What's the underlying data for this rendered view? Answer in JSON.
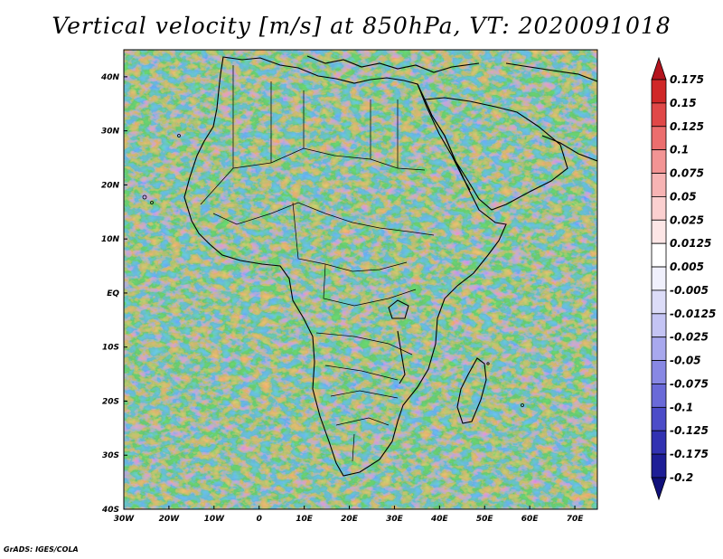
{
  "title": "Vertical velocity [m/s] at 850hPa, VT: 2020091018",
  "footer": "GrADS: IGES/COLA",
  "map": {
    "lon_range": [
      -30,
      75
    ],
    "lat_range": [
      -40,
      45
    ],
    "lon_ticks": [
      {
        "value": -30,
        "label": "30W"
      },
      {
        "value": -20,
        "label": "20W"
      },
      {
        "value": -10,
        "label": "10W"
      },
      {
        "value": 0,
        "label": "0"
      },
      {
        "value": 10,
        "label": "10E"
      },
      {
        "value": 20,
        "label": "20E"
      },
      {
        "value": 30,
        "label": "30E"
      },
      {
        "value": 40,
        "label": "40E"
      },
      {
        "value": 50,
        "label": "50E"
      },
      {
        "value": 60,
        "label": "60E"
      },
      {
        "value": 70,
        "label": "70E"
      }
    ],
    "lat_ticks": [
      {
        "value": 40,
        "label": "40N"
      },
      {
        "value": 30,
        "label": "30N"
      },
      {
        "value": 20,
        "label": "20N"
      },
      {
        "value": 10,
        "label": "10N"
      },
      {
        "value": 0,
        "label": "EQ"
      },
      {
        "value": -10,
        "label": "10S"
      },
      {
        "value": -20,
        "label": "20S"
      },
      {
        "value": -30,
        "label": "30S"
      },
      {
        "value": -40,
        "label": "40S"
      }
    ]
  },
  "colorbar": {
    "labels": [
      "0.175",
      "0.15",
      "0.125",
      "0.1",
      "0.075",
      "0.05",
      "0.025",
      "0.0125",
      "0.005",
      "-0.005",
      "-0.0125",
      "-0.025",
      "-0.05",
      "-0.075",
      "-0.1",
      "-0.125",
      "-0.175",
      "-0.2"
    ],
    "colors": [
      "#b4141e",
      "#d02828",
      "#e04848",
      "#ec6e6e",
      "#f29494",
      "#f7b4b4",
      "#fbd0d0",
      "#fde6e6",
      "#ffffff",
      "#f0f0fc",
      "#dcdcf8",
      "#c4c4f4",
      "#a8a8ee",
      "#8888e4",
      "#6a6ad8",
      "#4c4cc8",
      "#3232b2",
      "#1e1e96",
      "#10107a"
    ]
  }
}
